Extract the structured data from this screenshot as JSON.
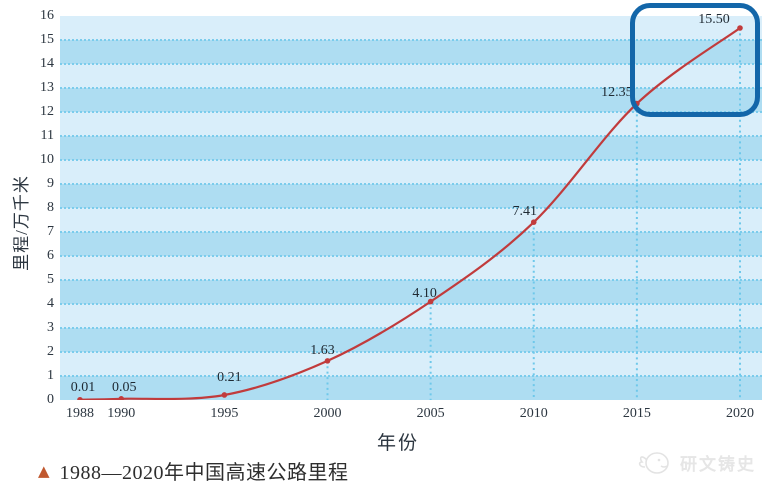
{
  "chart_data": {
    "type": "line",
    "title": "1988—2020年中国高速公路里程",
    "xlabel": "年份",
    "ylabel": "里程/万千米",
    "x": [
      1988,
      1990,
      1995,
      2000,
      2005,
      2010,
      2015,
      2020
    ],
    "values": [
      0.01,
      0.05,
      0.21,
      1.63,
      4.1,
      7.41,
      12.35,
      15.5
    ],
    "point_labels": [
      "0.01",
      "0.05",
      "0.21",
      "1.63",
      "4.10",
      "7.41",
      "12.35",
      "15.50"
    ],
    "xticks": [
      "1988",
      "1990",
      "1995",
      "2000",
      "2005",
      "2010",
      "2015",
      "2020"
    ],
    "yticks": [
      0,
      1,
      2,
      3,
      4,
      5,
      6,
      7,
      8,
      9,
      10,
      11,
      12,
      13,
      14,
      15,
      16
    ],
    "xlim": [
      1987,
      2021
    ],
    "ylim": [
      0,
      16
    ],
    "grid": "horizontal dotted gridlines every 1 unit; vertical dotted drop lines under each data point",
    "legend": "none",
    "annotation": "blue rounded-rectangle highlight emphasizing the 2015–2020 segment (values 12.35 to 15.50)",
    "colors": {
      "line": "#c13b3c",
      "marker": "#c13b3c",
      "band_light": "#d9eefa",
      "band_dark": "#aeddf2",
      "gridline": "#7bccec",
      "highlight_border": "#1366a9"
    }
  },
  "caption": {
    "marker": "▲",
    "text": "1988—2020年中国高速公路里程",
    "marker_color": "#c0582f"
  },
  "watermark": {
    "text": "研文铸史"
  }
}
